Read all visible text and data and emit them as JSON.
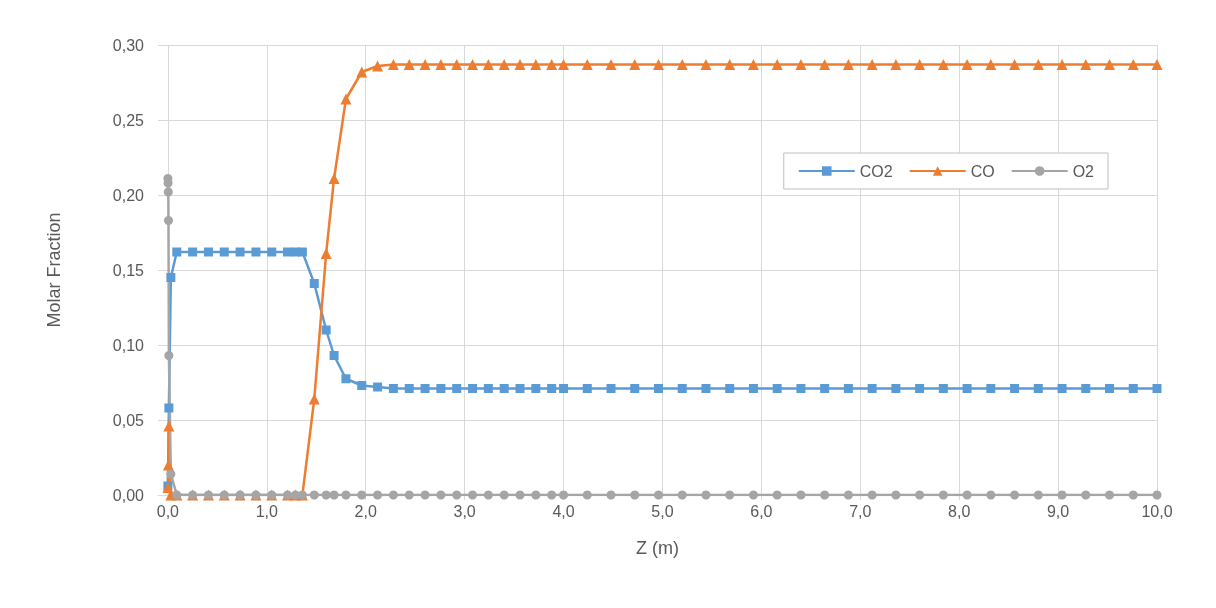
{
  "chart_data": {
    "type": "line",
    "xlabel": "Z (m)",
    "ylabel": "Molar Fraction",
    "xlim": [
      -0.1,
      10.0
    ],
    "ylim": [
      0,
      0.3
    ],
    "xticks": [
      {
        "value": 0,
        "label": "0,0"
      },
      {
        "value": 1,
        "label": "1,0"
      },
      {
        "value": 2,
        "label": "2,0"
      },
      {
        "value": 3,
        "label": "3,0"
      },
      {
        "value": 4,
        "label": "4,0"
      },
      {
        "value": 5,
        "label": "5,0"
      },
      {
        "value": 6,
        "label": "6,0"
      },
      {
        "value": 7,
        "label": "7,0"
      },
      {
        "value": 8,
        "label": "8,0"
      },
      {
        "value": 9,
        "label": "9,0"
      },
      {
        "value": 10,
        "label": "10,0"
      }
    ],
    "yticks": [
      {
        "value": 0,
        "label": "0,00"
      },
      {
        "value": 0.05,
        "label": "0,05"
      },
      {
        "value": 0.1,
        "label": "0,10"
      },
      {
        "value": 0.15,
        "label": "0,15"
      },
      {
        "value": 0.2,
        "label": "0,20"
      },
      {
        "value": 0.25,
        "label": "0,25"
      },
      {
        "value": 0.3,
        "label": "0,30"
      }
    ],
    "grid": true,
    "legend": "right",
    "line_style": "solid",
    "series": [
      {
        "name": "CO2",
        "color": "#5b9bd5",
        "marker": "square",
        "x": [
          0,
          0.01,
          0.03,
          0.09,
          0.25,
          0.41,
          0.57,
          0.73,
          0.89,
          1.05,
          1.21,
          1.29,
          1.36,
          1.48,
          1.6,
          1.68,
          1.8,
          1.96,
          2.12,
          2.28,
          2.44,
          2.6,
          2.76,
          2.92,
          3.08,
          3.24,
          3.4,
          3.56,
          3.72,
          3.88,
          4.0,
          4.24,
          4.48,
          4.72,
          4.96,
          5.2,
          5.44,
          5.68,
          5.92,
          6.16,
          6.4,
          6.64,
          6.88,
          7.12,
          7.36,
          7.6,
          7.84,
          8.08,
          8.32,
          8.56,
          8.8,
          9.04,
          9.28,
          9.52,
          9.76,
          10.0
        ],
        "values": [
          0.006,
          0.058,
          0.145,
          0.162,
          0.162,
          0.162,
          0.162,
          0.162,
          0.162,
          0.162,
          0.162,
          0.162,
          0.162,
          0.141,
          0.11,
          0.093,
          0.0775,
          0.073,
          0.072,
          0.071,
          0.071,
          0.071,
          0.071,
          0.071,
          0.071,
          0.071,
          0.071,
          0.071,
          0.071,
          0.071,
          0.071,
          0.071,
          0.071,
          0.071,
          0.071,
          0.071,
          0.071,
          0.071,
          0.071,
          0.071,
          0.071,
          0.071,
          0.071,
          0.071,
          0.071,
          0.071,
          0.071,
          0.071,
          0.071,
          0.071,
          0.071,
          0.071,
          0.071,
          0.071,
          0.071,
          0.071
        ]
      },
      {
        "name": "CO",
        "color": "#ed7d31",
        "marker": "triangle",
        "x": [
          0,
          0.005,
          0.01,
          0.03,
          0.09,
          0.25,
          0.41,
          0.57,
          0.73,
          0.89,
          1.05,
          1.21,
          1.29,
          1.36,
          1.48,
          1.6,
          1.68,
          1.8,
          1.96,
          2.12,
          2.28,
          2.44,
          2.6,
          2.76,
          2.92,
          3.08,
          3.24,
          3.4,
          3.56,
          3.72,
          3.88,
          4.0,
          4.24,
          4.48,
          4.72,
          4.96,
          5.2,
          5.44,
          5.68,
          5.92,
          6.16,
          6.4,
          6.64,
          6.88,
          7.12,
          7.36,
          7.6,
          7.84,
          8.08,
          8.32,
          8.56,
          8.8,
          9.04,
          9.28,
          9.52,
          9.76,
          10.0
        ],
        "values": [
          0.005,
          0.02,
          0.046,
          0,
          0,
          0,
          0,
          0,
          0,
          0,
          0,
          0,
          0,
          0,
          0.064,
          0.161,
          0.211,
          0.264,
          0.282,
          0.286,
          0.287,
          0.287,
          0.287,
          0.287,
          0.287,
          0.287,
          0.287,
          0.287,
          0.287,
          0.287,
          0.287,
          0.287,
          0.287,
          0.287,
          0.287,
          0.287,
          0.287,
          0.287,
          0.287,
          0.287,
          0.287,
          0.287,
          0.287,
          0.287,
          0.287,
          0.287,
          0.287,
          0.287,
          0.287,
          0.287,
          0.287,
          0.287,
          0.287,
          0.287,
          0.287,
          0.287,
          0.287
        ]
      },
      {
        "name": "O2",
        "color": "#a5a5a5",
        "marker": "circle",
        "x": [
          0,
          0.002,
          0.004,
          0.006,
          0.01,
          0.03,
          0.09,
          0.25,
          0.41,
          0.57,
          0.73,
          0.89,
          1.05,
          1.21,
          1.29,
          1.36,
          1.48,
          1.6,
          1.68,
          1.8,
          1.96,
          2.12,
          2.28,
          2.44,
          2.6,
          2.76,
          2.92,
          3.08,
          3.24,
          3.4,
          3.56,
          3.72,
          3.88,
          4.0,
          4.24,
          4.48,
          4.72,
          4.96,
          5.2,
          5.44,
          5.68,
          5.92,
          6.16,
          6.4,
          6.64,
          6.88,
          7.12,
          7.36,
          7.6,
          7.84,
          8.08,
          8.32,
          8.56,
          8.8,
          9.04,
          9.28,
          9.52,
          9.76,
          10.0
        ],
        "values": [
          0.211,
          0.208,
          0.202,
          0.183,
          0.093,
          0.014,
          0,
          0,
          0,
          0,
          0,
          0,
          0,
          0,
          0,
          0,
          0,
          0,
          0,
          0,
          0,
          0,
          0,
          0,
          0,
          0,
          0,
          0,
          0,
          0,
          0,
          0,
          0,
          0,
          0,
          0,
          0,
          0,
          0,
          0,
          0,
          0,
          0,
          0,
          0,
          0,
          0,
          0,
          0,
          0,
          0,
          0,
          0,
          0,
          0,
          0,
          0,
          0,
          0
        ]
      }
    ]
  }
}
